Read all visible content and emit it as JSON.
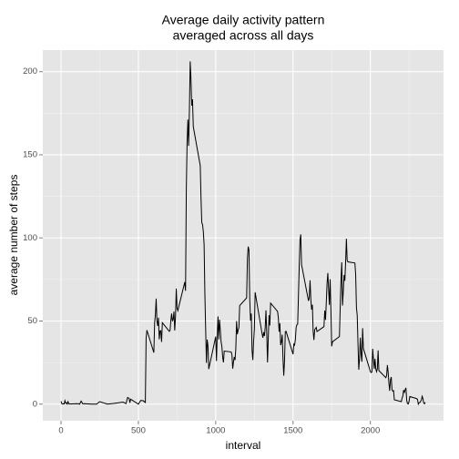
{
  "chart_data": {
    "type": "line",
    "title": [
      "Average daily activity pattern",
      "averaged across all days"
    ],
    "xlabel": "interval",
    "ylabel": "average number of steps",
    "x": [
      0,
      5,
      10,
      15,
      20,
      25,
      30,
      35,
      40,
      45,
      50,
      55,
      100,
      110,
      120,
      130,
      140,
      150,
      200,
      230,
      250,
      300,
      320,
      340,
      400,
      420,
      430,
      440,
      445,
      450,
      500,
      515,
      530,
      545,
      550,
      555,
      600,
      605,
      610,
      615,
      620,
      625,
      630,
      635,
      640,
      645,
      650,
      655,
      700,
      705,
      710,
      715,
      720,
      725,
      730,
      735,
      740,
      745,
      750,
      755,
      800,
      805,
      810,
      815,
      820,
      825,
      830,
      835,
      840,
      845,
      850,
      855,
      900,
      905,
      910,
      915,
      920,
      925,
      930,
      935,
      940,
      945,
      950,
      955,
      1000,
      1005,
      1010,
      1015,
      1020,
      1025,
      1030,
      1035,
      1040,
      1045,
      1050,
      1055,
      1100,
      1105,
      1110,
      1115,
      1120,
      1125,
      1130,
      1135,
      1140,
      1145,
      1150,
      1155,
      1200,
      1205,
      1210,
      1215,
      1220,
      1225,
      1230,
      1235,
      1240,
      1245,
      1250,
      1255,
      1300,
      1305,
      1310,
      1315,
      1320,
      1325,
      1330,
      1335,
      1340,
      1345,
      1350,
      1355,
      1400,
      1405,
      1410,
      1415,
      1420,
      1425,
      1430,
      1435,
      1440,
      1445,
      1450,
      1455,
      1500,
      1505,
      1510,
      1515,
      1520,
      1525,
      1530,
      1535,
      1540,
      1545,
      1550,
      1555,
      1600,
      1605,
      1610,
      1615,
      1620,
      1625,
      1630,
      1635,
      1640,
      1645,
      1650,
      1655,
      1700,
      1705,
      1710,
      1715,
      1720,
      1725,
      1730,
      1735,
      1740,
      1745,
      1750,
      1755,
      1800,
      1805,
      1810,
      1815,
      1820,
      1825,
      1830,
      1835,
      1840,
      1845,
      1850,
      1855,
      1900,
      1905,
      1910,
      1915,
      1920,
      1925,
      1930,
      1935,
      1940,
      1945,
      1950,
      1955,
      2000,
      2005,
      2010,
      2015,
      2020,
      2025,
      2030,
      2035,
      2040,
      2045,
      2050,
      2055,
      2100,
      2105,
      2110,
      2115,
      2120,
      2125,
      2130,
      2135,
      2140,
      2145,
      2150,
      2155,
      2200,
      2205,
      2210,
      2215,
      2220,
      2225,
      2230,
      2235,
      2240,
      2245,
      2250,
      2255,
      2300,
      2305,
      2310,
      2315,
      2320,
      2325,
      2330,
      2335,
      2340,
      2345,
      2350,
      2355
    ],
    "values": [
      1.7,
      0.3,
      0.1,
      0.2,
      0.1,
      2.1,
      0.5,
      0.9,
      0,
      1.5,
      0.3,
      0.1,
      0.3,
      0.2,
      0,
      1.8,
      0.2,
      0.3,
      0,
      0,
      1.5,
      0,
      0.2,
      0.4,
      1.2,
      0.3,
      4,
      3.5,
      0.8,
      3,
      0,
      2.2,
      2.1,
      1,
      39.5,
      44.5,
      31,
      49,
      53.8,
      63.5,
      50,
      47,
      52,
      39,
      44,
      44.2,
      37.4,
      49,
      43.8,
      44.4,
      50.5,
      54.5,
      49.9,
      51,
      55.7,
      44.3,
      52.3,
      69.5,
      57.8,
      56.2,
      73.4,
      68.2,
      129.4,
      157.5,
      171.2,
      155.4,
      177.3,
      206.2,
      195.9,
      179.6,
      183.4,
      167,
      143.5,
      124,
      109.1,
      108.1,
      103.7,
      96,
      66.2,
      45.2,
      24.8,
      38.8,
      35,
      21.1,
      40.6,
      26,
      42,
      52.7,
      38.9,
      50.8,
      44.3,
      37.4,
      34.7,
      28.3,
      25.1,
      31.9,
      31.4,
      29.7,
      21.3,
      25.5,
      28.4,
      26.5,
      33.4,
      50,
      42,
      44.6,
      46,
      59.3,
      63.9,
      87.7,
      94.8,
      92.8,
      63.4,
      50.2,
      54.5,
      32.4,
      26.5,
      37.7,
      45.1,
      67.3,
      42.3,
      39.9,
      43.3,
      41,
      46.2,
      56.4,
      42.8,
      25.1,
      40,
      53.5,
      47.3,
      60.8,
      55.8,
      52,
      43.6,
      48.7,
      35.5,
      37.5,
      41.8,
      27.5,
      17.1,
      26.1,
      43.6,
      43.8,
      30,
      36.1,
      35.5,
      38.8,
      46,
      47.8,
      48.1,
      65.3,
      82.9,
      98.7,
      102.1,
      84,
      62.1,
      64.1,
      74.5,
      63.2,
      56.9,
      59.8,
      43.9,
      38.6,
      44.7,
      45.5,
      46.2,
      43.7,
      46.6,
      56.3,
      50.7,
      61.2,
      72.7,
      78.9,
      68.9,
      59.7,
      75.1,
      56.5,
      34.8,
      37.5,
      40.7,
      58,
      74.7,
      85.3,
      59.3,
      67.8,
      77.7,
      74.2,
      85.3,
      99.5,
      86.6,
      85.6,
      84.9,
      77.8,
      58,
      53.4,
      36.3,
      20.7,
      27.4,
      40,
      30.2,
      25.5,
      45.7,
      33.5,
      19.6,
      19,
      19.3,
      33.3,
      26.8,
      21.2,
      27.3,
      21.3,
      19.5,
      21.3,
      32.3,
      20.2,
      15.9,
      17.2,
      23.5,
      19.2,
      12.5,
      8,
      14.7,
      16.3,
      8.7,
      7.8,
      8.1,
      2.6,
      1.5,
      3.7,
      4.8,
      8.5,
      7.1,
      8.7,
      9.8,
      2.2,
      0.3,
      0.1,
      1.6,
      4.6,
      3.3,
      2.8,
      0,
      0.8,
      1,
      1.6,
      2.6,
      4.7,
      3.3,
      0.6,
      0.2,
      1.1
    ],
    "color": "#000000",
    "xlim": [
      -118,
      2473
    ],
    "xticks": [
      0,
      500,
      1000,
      1500,
      2000
    ],
    "xminor": [
      250,
      750,
      1250,
      1750,
      2250
    ],
    "ylim": [
      -10,
      213
    ],
    "yticks": [
      0,
      50,
      100,
      150,
      200
    ],
    "yminor": [
      25,
      75,
      125,
      175
    ],
    "grid": true
  }
}
